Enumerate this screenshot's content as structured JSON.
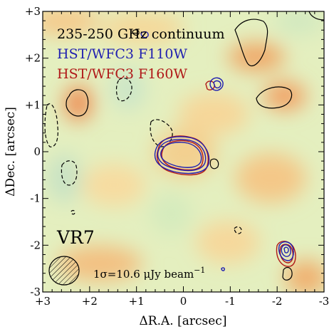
{
  "chart_data": {
    "type": "contour-map",
    "xlabel": "ΔR.A. [arcsec]",
    "ylabel": "ΔDec. [arcsec]",
    "xlim": [
      3,
      -3
    ],
    "ylim": [
      -3,
      3
    ],
    "x_ticks": [
      3,
      2,
      1,
      0,
      -1,
      -2,
      -3
    ],
    "x_tick_labels": [
      "+3",
      "+2",
      "+1",
      "0",
      "-1",
      "-2",
      "-3"
    ],
    "y_ticks": [
      3,
      2,
      1,
      0,
      -1,
      -2,
      -3
    ],
    "y_tick_labels": [
      "+3",
      "+2",
      "+1",
      "0",
      "-1",
      "-2",
      "-3"
    ],
    "legend": [
      {
        "label": "235-250 GHz continuum",
        "color": "#000000"
      },
      {
        "label": "HST/WFC3 F110W",
        "color": "#1f1fb0"
      },
      {
        "label": "HST/WFC3 F160W",
        "color": "#b01818"
      }
    ],
    "target": "VR7",
    "noise_label": "1σ=10.6 μJy beam",
    "noise_exponent": "−1",
    "beam": {
      "x": 2.5,
      "y": -2.5
    },
    "background_colors": {
      "low": "#d9ecb8",
      "mid": "#f4e7a6",
      "high": "#ee8a4d"
    },
    "sources": [
      {
        "name": "central",
        "x": 0.0,
        "y": 0.0
      },
      {
        "name": "north-east-companion",
        "x": -0.7,
        "y": 1.45
      },
      {
        "name": "south-east-companion",
        "x": -2.2,
        "y": -2.1
      }
    ]
  }
}
